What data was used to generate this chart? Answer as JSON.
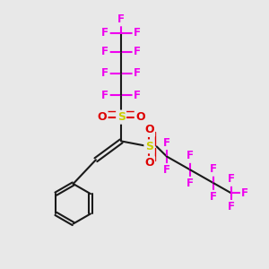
{
  "bg_color": "#e8e8e8",
  "bond_color": "#1a1a1a",
  "S_color": "#cccc00",
  "O_color": "#dd0000",
  "F_color": "#ee00ee",
  "figsize": [
    3.0,
    3.0
  ],
  "dpi": 100,
  "xlim": [
    0,
    10
  ],
  "ylim": [
    0,
    10
  ]
}
